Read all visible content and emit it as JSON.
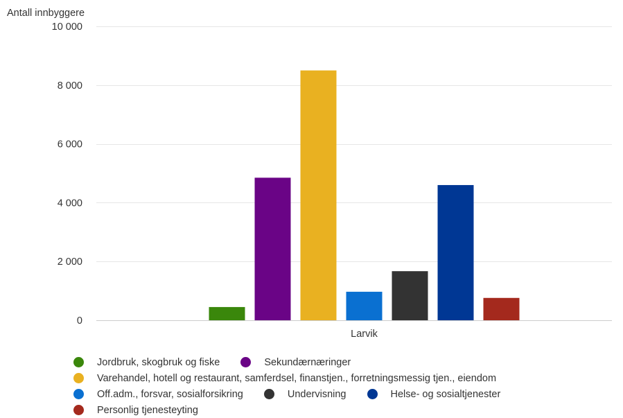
{
  "chart_data": {
    "type": "bar",
    "ylabel": "Antall innbyggere",
    "categories": [
      "Larvik"
    ],
    "ylim": [
      0,
      10000
    ],
    "yticks": [
      0,
      2000,
      4000,
      6000,
      8000,
      10000
    ],
    "ytick_labels": [
      "0",
      "2 000",
      "4 000",
      "6 000",
      "8 000",
      "10 000"
    ],
    "grid": true,
    "legend_position": "bottom",
    "series": [
      {
        "name": "Jordbruk, skogbruk og fiske",
        "values": [
          450
        ],
        "color": "#3a870b"
      },
      {
        "name": "Sekundærnæringer",
        "values": [
          4850
        ],
        "color": "#6a0486"
      },
      {
        "name": "Varehandel, hotell og restaurant, samferdsel, finanstjen., forretningsmessig tjen., eiendom",
        "values": [
          8500
        ],
        "color": "#e9b121"
      },
      {
        "name": "Off.adm., forsvar, sosialforsikring",
        "values": [
          970
        ],
        "color": "#0a70d1"
      },
      {
        "name": "Undervisning",
        "values": [
          1670
        ],
        "color": "#333333"
      },
      {
        "name": "Helse- og sosialtjenester",
        "values": [
          4600
        ],
        "color": "#003794"
      },
      {
        "name": "Personlig tjenesteyting",
        "values": [
          760
        ],
        "color": "#a4291d"
      }
    ]
  }
}
